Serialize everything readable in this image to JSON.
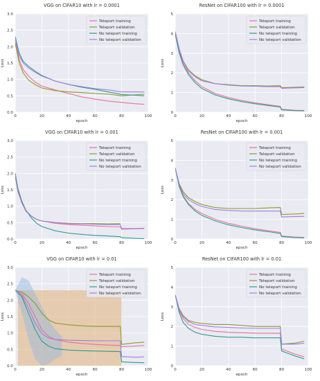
{
  "colors": {
    "teleport_training": "#e8709a",
    "teleport_validation": "#8c9a2c",
    "no_teleport_training": "#2a9d8f",
    "no_teleport_validation": "#9d7fe0",
    "band_orange": "#e0b07a",
    "band_blue": "#8fb8e0",
    "plot_bg": "#eaeaf2",
    "grid": "#ffffff"
  },
  "chart_data": [
    {
      "type": "line",
      "title": "VGG on CIFAR10 with lr = 0.0001",
      "xlabel": "epoch",
      "ylabel": "Loss",
      "xlim": [
        0,
        100
      ],
      "ylim": [
        0,
        3.0
      ],
      "xticks": [
        "0",
        "20",
        "40",
        "60",
        "80",
        "100"
      ],
      "yticks": [
        "0.0",
        "0.5",
        "1.0",
        "1.5",
        "2.0",
        "2.5",
        "3.0"
      ],
      "grid": true,
      "legend": "top-right",
      "series": [
        {
          "name": "Teleport training",
          "color": "teleport_training",
          "x": [
            0,
            3,
            6,
            10,
            15,
            20,
            30,
            40,
            50,
            60,
            70,
            80,
            90,
            97
          ],
          "y": [
            2.2,
            1.6,
            1.3,
            1.1,
            0.92,
            0.8,
            0.68,
            0.57,
            0.47,
            0.4,
            0.34,
            0.3,
            0.26,
            0.24
          ]
        },
        {
          "name": "Teleport validation",
          "color": "teleport_validation",
          "x": [
            0,
            3,
            6,
            10,
            15,
            20,
            30,
            40,
            50,
            60,
            70,
            80,
            90,
            97
          ],
          "y": [
            2.1,
            1.5,
            1.2,
            0.98,
            0.84,
            0.74,
            0.66,
            0.62,
            0.6,
            0.57,
            0.55,
            0.5,
            0.53,
            0.55
          ]
        },
        {
          "name": "No teleport training",
          "color": "no_teleport_training",
          "x": [
            0,
            3,
            6,
            10,
            15,
            20,
            30,
            40,
            50,
            60,
            70,
            80,
            90,
            97
          ],
          "y": [
            2.3,
            1.8,
            1.55,
            1.4,
            1.25,
            1.12,
            0.95,
            0.85,
            0.76,
            0.7,
            0.62,
            0.54,
            0.52,
            0.5
          ]
        },
        {
          "name": "No teleport validation",
          "color": "no_teleport_validation",
          "x": [
            0,
            3,
            6,
            10,
            15,
            20,
            30,
            40,
            50,
            60,
            70,
            80,
            90,
            97
          ],
          "y": [
            2.25,
            1.72,
            1.5,
            1.35,
            1.22,
            1.1,
            0.95,
            0.85,
            0.78,
            0.72,
            0.68,
            0.62,
            0.62,
            0.62
          ]
        }
      ]
    },
    {
      "type": "line",
      "title": "ResNet on CIFAR100 with lr = 0.0001",
      "xlabel": "epoch",
      "ylabel": "Loss",
      "xlim": [
        0,
        100
      ],
      "ylim": [
        0,
        5
      ],
      "xticks": [
        "0",
        "20",
        "40",
        "60",
        "80",
        "100"
      ],
      "yticks": [
        "0",
        "1",
        "2",
        "3",
        "4",
        "5"
      ],
      "grid": true,
      "legend": "top-right",
      "series": [
        {
          "name": "Teleport training",
          "color": "teleport_training",
          "x": [
            0,
            3,
            6,
            10,
            15,
            20,
            30,
            40,
            50,
            60,
            70,
            79,
            80,
            90,
            97
          ],
          "y": [
            4.0,
            3.1,
            2.5,
            2.0,
            1.6,
            1.3,
            0.95,
            0.75,
            0.6,
            0.48,
            0.38,
            0.3,
            0.15,
            0.1,
            0.09
          ]
        },
        {
          "name": "Teleport validation",
          "color": "teleport_validation",
          "x": [
            0,
            3,
            6,
            10,
            15,
            20,
            30,
            40,
            50,
            60,
            70,
            79,
            80,
            90,
            97
          ],
          "y": [
            4.1,
            3.2,
            2.6,
            2.15,
            1.85,
            1.65,
            1.45,
            1.4,
            1.35,
            1.35,
            1.33,
            1.35,
            1.25,
            1.27,
            1.28
          ]
        },
        {
          "name": "No teleport training",
          "color": "no_teleport_training",
          "x": [
            0,
            3,
            6,
            10,
            15,
            20,
            30,
            40,
            50,
            60,
            70,
            79,
            80,
            90,
            97
          ],
          "y": [
            3.95,
            3.0,
            2.4,
            1.9,
            1.5,
            1.2,
            0.88,
            0.68,
            0.54,
            0.43,
            0.34,
            0.26,
            0.12,
            0.08,
            0.07
          ]
        },
        {
          "name": "No teleport validation",
          "color": "no_teleport_validation",
          "x": [
            0,
            3,
            6,
            10,
            15,
            20,
            30,
            40,
            50,
            60,
            70,
            79,
            80,
            90,
            97
          ],
          "y": [
            4.05,
            3.2,
            2.6,
            2.1,
            1.8,
            1.6,
            1.45,
            1.38,
            1.33,
            1.32,
            1.3,
            1.3,
            1.22,
            1.24,
            1.25
          ]
        }
      ]
    },
    {
      "type": "line",
      "title": "VGG on CIFAR10 with lr = 0.001",
      "xlabel": "epoch",
      "ylabel": "Loss",
      "xlim": [
        0,
        100
      ],
      "ylim": [
        0,
        3.0
      ],
      "xticks": [
        "0",
        "20",
        "40",
        "60",
        "80",
        "100"
      ],
      "yticks": [
        "0.0",
        "0.5",
        "1.0",
        "1.5",
        "2.0",
        "2.5",
        "3.0"
      ],
      "grid": true,
      "legend": "top-right",
      "series": [
        {
          "name": "Teleport training",
          "color": "teleport_training",
          "x": [
            0,
            2,
            5,
            8,
            12,
            16,
            20,
            30,
            40,
            50,
            60,
            70,
            79,
            80,
            90,
            97
          ],
          "y": [
            2.0,
            1.5,
            1.1,
            0.85,
            0.7,
            0.6,
            0.55,
            0.48,
            0.44,
            0.42,
            0.4,
            0.38,
            0.37,
            0.3,
            0.31,
            0.32
          ]
        },
        {
          "name": "Teleport validation",
          "color": "teleport_validation",
          "x": [
            0,
            2,
            5,
            8,
            12,
            16,
            20,
            30,
            40,
            50,
            60,
            70,
            79
          ],
          "y": [
            1.9,
            1.45,
            1.1,
            0.85,
            0.7,
            0.6,
            0.55,
            0.5,
            0.48,
            0.47,
            0.47,
            0.46,
            0.47
          ]
        },
        {
          "name": "No teleport training",
          "color": "no_teleport_training",
          "x": [
            0,
            2,
            5,
            8,
            12,
            16,
            20,
            30,
            40,
            50,
            60,
            70,
            79,
            80,
            90,
            97
          ],
          "y": [
            2.0,
            1.55,
            1.15,
            0.88,
            0.65,
            0.48,
            0.38,
            0.25,
            0.18,
            0.14,
            0.11,
            0.09,
            0.07,
            0.04,
            0.02,
            0.01
          ]
        },
        {
          "name": "No teleport validation",
          "color": "no_teleport_validation",
          "x": [
            0,
            2,
            5,
            8,
            12,
            16,
            20,
            30,
            40,
            50,
            60,
            70,
            79,
            80,
            90,
            97
          ],
          "y": [
            1.95,
            1.5,
            1.1,
            0.87,
            0.7,
            0.6,
            0.55,
            0.5,
            0.47,
            0.46,
            0.45,
            0.44,
            0.44,
            0.32,
            0.32,
            0.33
          ]
        }
      ]
    },
    {
      "type": "line",
      "title": "ResNet on CIFAR100 with lr = 0.001",
      "xlabel": "epoch",
      "ylabel": "Loss",
      "xlim": [
        0,
        100
      ],
      "ylim": [
        0,
        5
      ],
      "xticks": [
        "0",
        "20",
        "40",
        "60",
        "80",
        "100"
      ],
      "yticks": [
        "0",
        "1",
        "2",
        "3",
        "4",
        "5"
      ],
      "grid": true,
      "legend": "top-right",
      "series": [
        {
          "name": "Teleport training",
          "color": "teleport_training",
          "x": [
            0,
            3,
            6,
            10,
            15,
            20,
            30,
            40,
            50,
            60,
            70,
            79,
            80,
            90,
            97
          ],
          "y": [
            3.6,
            2.7,
            2.2,
            1.8,
            1.5,
            1.3,
            1.0,
            0.8,
            0.65,
            0.52,
            0.42,
            0.33,
            0.15,
            0.1,
            0.08
          ]
        },
        {
          "name": "Teleport validation",
          "color": "teleport_validation",
          "x": [
            0,
            3,
            6,
            10,
            15,
            20,
            30,
            40,
            50,
            60,
            70,
            79,
            80,
            90,
            97
          ],
          "y": [
            3.6,
            2.8,
            2.4,
            2.1,
            1.9,
            1.75,
            1.6,
            1.55,
            1.55,
            1.55,
            1.58,
            1.6,
            1.25,
            1.27,
            1.3
          ]
        },
        {
          "name": "No teleport training",
          "color": "no_teleport_training",
          "x": [
            0,
            3,
            6,
            10,
            15,
            20,
            30,
            40,
            50,
            60,
            70,
            79,
            80,
            90,
            97
          ],
          "y": [
            3.6,
            2.65,
            2.15,
            1.75,
            1.42,
            1.2,
            0.92,
            0.72,
            0.58,
            0.46,
            0.37,
            0.28,
            0.12,
            0.07,
            0.06
          ]
        },
        {
          "name": "No teleport validation",
          "color": "no_teleport_validation",
          "x": [
            0,
            3,
            6,
            10,
            15,
            20,
            30,
            40,
            50,
            60,
            70,
            79,
            80,
            90,
            97
          ],
          "y": [
            3.6,
            2.75,
            2.3,
            2.0,
            1.8,
            1.65,
            1.5,
            1.45,
            1.42,
            1.42,
            1.42,
            1.42,
            1.12,
            1.14,
            1.15
          ]
        }
      ]
    },
    {
      "type": "line",
      "title": "VGG on CIFAR10 with lr = 0.01",
      "xlabel": "epoch",
      "ylabel": "Loss",
      "xlim": [
        0,
        100
      ],
      "ylim": [
        0,
        3.0
      ],
      "xticks": [
        "0",
        "20",
        "40",
        "60",
        "80",
        "100"
      ],
      "yticks": [
        "0.0",
        "0.5",
        "1.0",
        "1.5",
        "2.0",
        "2.5",
        "3.0"
      ],
      "grid": true,
      "legend": "top-right",
      "series": [
        {
          "name": "Teleport training",
          "color": "teleport_training",
          "x": [
            0,
            5,
            10,
            15,
            20,
            25,
            30,
            40,
            50,
            60,
            70,
            79,
            80,
            90,
            97
          ],
          "y": [
            2.3,
            2.2,
            1.9,
            1.5,
            1.1,
            0.9,
            0.8,
            0.72,
            0.68,
            0.65,
            0.63,
            0.62,
            0.58,
            0.6,
            0.62
          ]
        },
        {
          "name": "Teleport validation",
          "color": "teleport_validation",
          "x": [
            0,
            5,
            10,
            15,
            20,
            25,
            30,
            40,
            50,
            60,
            70,
            79,
            80,
            90,
            97
          ],
          "y": [
            2.3,
            2.25,
            2.1,
            1.9,
            1.6,
            1.4,
            1.3,
            1.25,
            1.22,
            1.2,
            1.2,
            1.2,
            0.65,
            0.7,
            0.72
          ]
        },
        {
          "name": "No teleport training",
          "color": "no_teleport_training",
          "x": [
            0,
            5,
            10,
            15,
            20,
            25,
            30,
            40,
            50,
            60,
            70,
            79,
            80,
            90,
            97
          ],
          "y": [
            2.3,
            2.1,
            1.6,
            1.1,
            0.75,
            0.6,
            0.52,
            0.48,
            0.46,
            0.45,
            0.44,
            0.43,
            0.12,
            0.1,
            0.09
          ]
        },
        {
          "name": "No teleport validation",
          "color": "no_teleport_validation",
          "x": [
            0,
            5,
            10,
            15,
            20,
            25,
            30,
            40,
            50,
            60,
            70,
            79,
            80,
            90,
            97
          ],
          "y": [
            2.3,
            2.15,
            1.75,
            1.3,
            0.98,
            0.85,
            0.8,
            0.78,
            0.77,
            0.76,
            0.76,
            0.76,
            0.28,
            0.26,
            0.27
          ]
        }
      ]
    },
    {
      "type": "line",
      "title": "ResNet on CIFAR100 with lr = 0.01",
      "xlabel": "epoch",
      "ylabel": "Loss",
      "xlim": [
        0,
        100
      ],
      "ylim": [
        0,
        5
      ],
      "xticks": [
        "0",
        "20",
        "40",
        "60",
        "80",
        "100"
      ],
      "yticks": [
        "0",
        "1",
        "2",
        "3",
        "4",
        "5"
      ],
      "grid": true,
      "legend": "top-right",
      "series": [
        {
          "name": "Teleport training",
          "color": "teleport_training",
          "x": [
            0,
            3,
            6,
            10,
            15,
            20,
            30,
            40,
            50,
            60,
            70,
            79,
            80,
            90,
            97
          ],
          "y": [
            3.6,
            2.8,
            2.4,
            2.1,
            1.95,
            1.85,
            1.75,
            1.7,
            1.68,
            1.66,
            1.65,
            1.65,
            0.85,
            0.6,
            0.45
          ]
        },
        {
          "name": "Teleport validation",
          "color": "teleport_validation",
          "x": [
            0,
            3,
            6,
            10,
            15,
            20,
            30,
            40,
            50,
            60,
            70,
            79,
            80,
            90,
            97
          ],
          "y": [
            3.6,
            2.9,
            2.55,
            2.3,
            2.2,
            2.15,
            2.1,
            2.1,
            2.05,
            2.0,
            2.0,
            2.0,
            1.1,
            1.15,
            1.25
          ]
        },
        {
          "name": "No teleport training",
          "color": "no_teleport_training",
          "x": [
            0,
            3,
            6,
            10,
            15,
            20,
            30,
            40,
            50,
            60,
            70,
            79,
            80,
            90,
            97
          ],
          "y": [
            3.6,
            2.7,
            2.2,
            1.9,
            1.7,
            1.6,
            1.5,
            1.45,
            1.45,
            1.42,
            1.42,
            1.42,
            0.75,
            0.5,
            0.35
          ]
        },
        {
          "name": "No teleport validation",
          "color": "no_teleport_validation",
          "x": [
            0,
            3,
            6,
            10,
            15,
            20,
            30,
            40,
            50,
            60,
            70,
            79,
            80,
            90,
            97
          ],
          "y": [
            3.6,
            2.85,
            2.5,
            2.25,
            2.1,
            2.05,
            1.98,
            1.95,
            1.92,
            1.9,
            1.9,
            1.9,
            1.1,
            1.1,
            1.15
          ]
        }
      ]
    }
  ]
}
